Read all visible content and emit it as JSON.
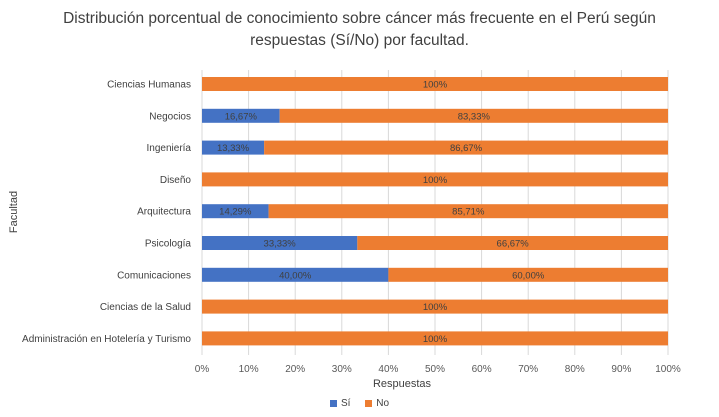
{
  "chart_data": {
    "type": "bar",
    "orientation": "horizontal-stacked-100",
    "title_line1": "Distribución porcentual de conocimiento sobre cáncer más frecuente en el Perú según",
    "title_line2": "respuestas (Sí/No) por facultad.",
    "xlabel": "Respuestas",
    "ylabel": "Facultad",
    "xlim": [
      0,
      100
    ],
    "xticks": [
      "0%",
      "10%",
      "20%",
      "30%",
      "40%",
      "50%",
      "60%",
      "70%",
      "80%",
      "90%",
      "100%"
    ],
    "categories": [
      "Ciencias Humanas",
      "Negocios",
      "Ingeniería",
      "Diseño",
      "Arquitectura",
      "Psicología",
      "Comunicaciones",
      "Ciencias de la Salud",
      "Administración en Hotelería y Turismo"
    ],
    "series": [
      {
        "name": "Sí",
        "color": "#4472C4",
        "values": [
          0,
          16.67,
          13.33,
          0,
          14.29,
          33.33,
          40.0,
          0,
          0
        ],
        "labels": [
          "",
          "16,67%",
          "13,33%",
          "",
          "14,29%",
          "33,33%",
          "40,00%",
          "",
          ""
        ]
      },
      {
        "name": "No",
        "color": "#ED7D31",
        "values": [
          100,
          83.33,
          86.67,
          100,
          85.71,
          66.67,
          60.0,
          100,
          100
        ],
        "labels": [
          "100%",
          "83,33%",
          "86,67%",
          "100%",
          "85,71%",
          "66,67%",
          "60,00%",
          "100%",
          "100%"
        ]
      }
    ],
    "grid": true,
    "legend_position": "bottom"
  }
}
